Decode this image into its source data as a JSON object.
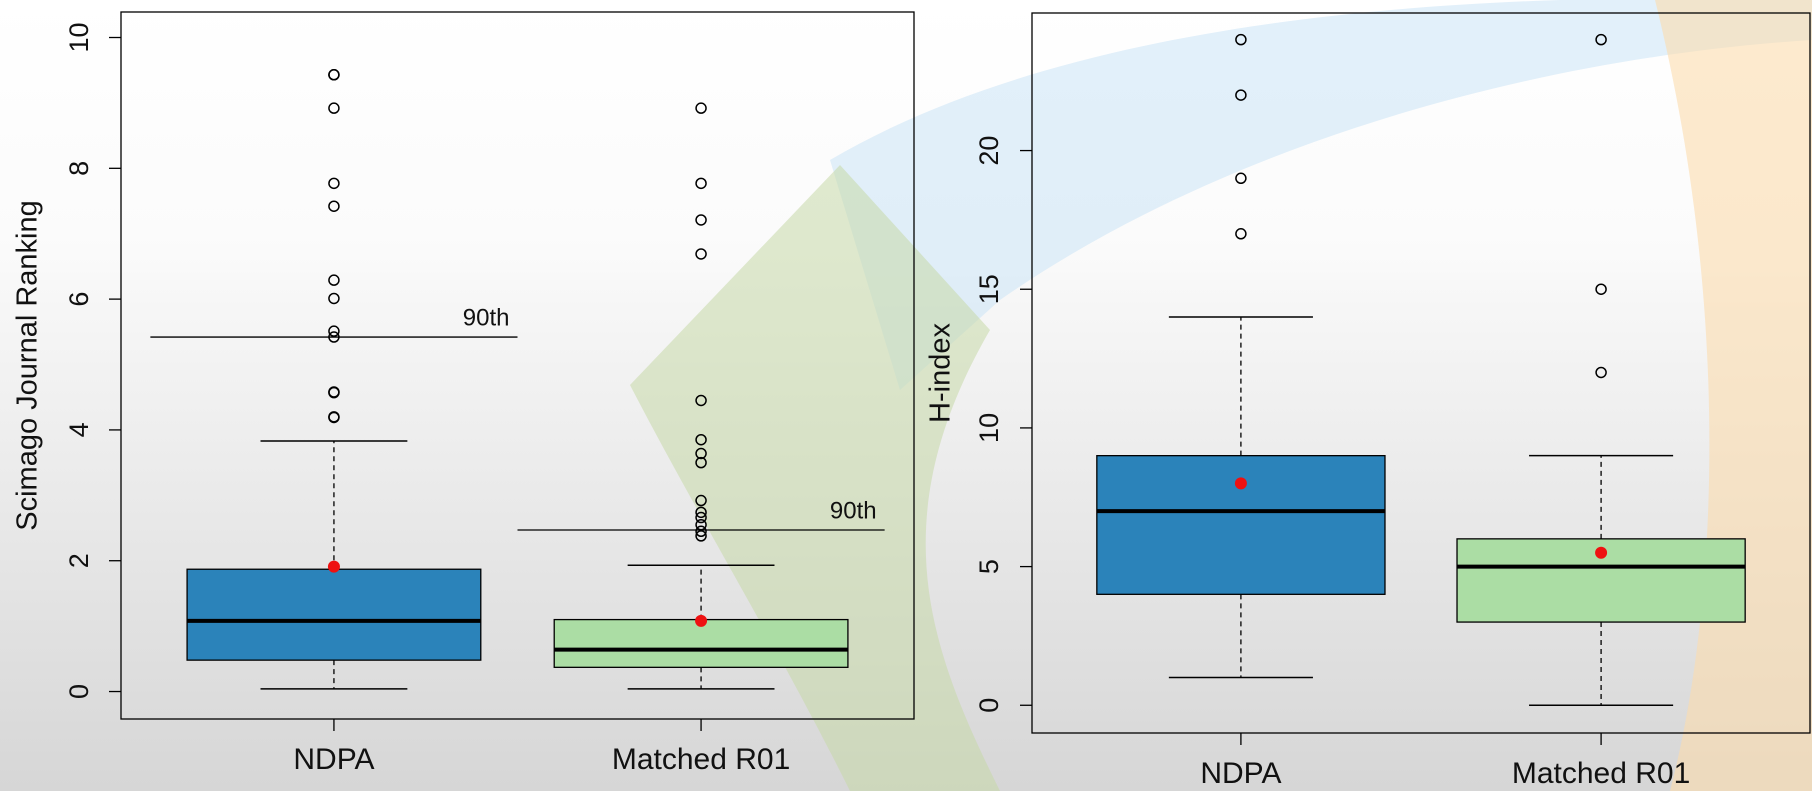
{
  "chart_data": [
    {
      "type": "box",
      "y_label": "Scimago Journal Ranking",
      "ylim": [
        -0.42,
        10.39
      ],
      "yticks": [
        0,
        2,
        4,
        6,
        8,
        10
      ],
      "boxes": [
        {
          "category": "NDPA",
          "color": "#2b83ba",
          "min": 0.04,
          "q1": 0.48,
          "median": 1.08,
          "q3": 1.87,
          "max": 3.83,
          "mean": 1.91,
          "outliers": [
            9.43,
            9.43,
            8.92,
            7.77,
            7.42,
            6.29,
            6.01,
            5.51,
            5.42,
            4.58,
            4.57,
            4.19,
            4.2
          ],
          "p90": 5.42,
          "p90_label": "90th"
        },
        {
          "category": "Matched R01",
          "color": "#abdda4",
          "min": 0.04,
          "q1": 0.37,
          "median": 0.64,
          "q3": 1.1,
          "max": 1.93,
          "mean": 1.08,
          "outliers": [
            8.92,
            7.77,
            7.21,
            6.69,
            4.45,
            3.85,
            3.64,
            3.5,
            2.92,
            2.74,
            2.66,
            2.55,
            2.45,
            2.38
          ],
          "p90": 2.47,
          "p90_label": "90th"
        }
      ]
    },
    {
      "type": "box",
      "y_label": "H-index",
      "ylim": [
        -1,
        24.96
      ],
      "yticks": [
        0,
        5,
        10,
        15,
        20
      ],
      "boxes": [
        {
          "category": "NDPA",
          "color": "#2b83ba",
          "min": 1,
          "q1": 4,
          "median": 7,
          "q3": 9,
          "max": 14,
          "mean": 8,
          "outliers": [
            17,
            19,
            22,
            24
          ]
        },
        {
          "category": "Matched R01",
          "color": "#abdda4",
          "min": 0,
          "q1": 3,
          "median": 5,
          "q3": 6,
          "max": 9,
          "mean": 5.5,
          "outliers": [
            12,
            15,
            24
          ]
        }
      ]
    }
  ]
}
